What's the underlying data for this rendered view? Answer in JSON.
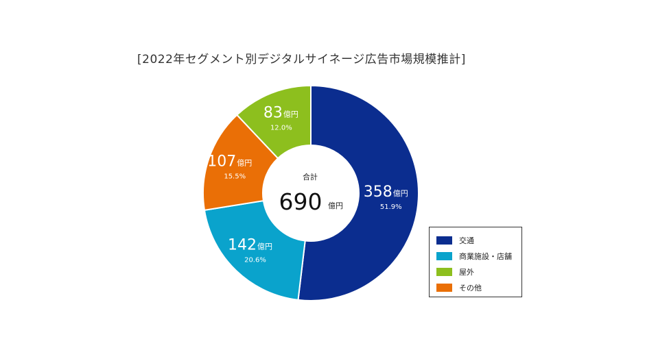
{
  "chart_data": {
    "type": "pie",
    "title": "[2022年セグメント別デジタルサイネージ広告市場規模推計]",
    "unit": "億円",
    "center": {
      "label": "合計",
      "value": 690,
      "unit": "億円"
    },
    "legend_position": "bottom-right",
    "slices": [
      {
        "name": "交通",
        "value": 358,
        "pct": "51.9%",
        "color": "#0b2d8f"
      },
      {
        "name": "商業施設・店舗",
        "value": 142,
        "pct": "20.6%",
        "color": "#0aa3cc"
      },
      {
        "name": "その他",
        "value": 107,
        "pct": "15.5%",
        "color": "#ea6f06"
      },
      {
        "name": "屋外",
        "value": 83,
        "pct": "12.0%",
        "color": "#8dbf1e"
      }
    ],
    "legend": [
      {
        "name": "交通",
        "color": "#0b2d8f"
      },
      {
        "name": "商業施設・店舗",
        "color": "#0aa3cc"
      },
      {
        "name": "屋外",
        "color": "#8dbf1e"
      },
      {
        "name": "その他",
        "color": "#ea6f06"
      }
    ]
  }
}
